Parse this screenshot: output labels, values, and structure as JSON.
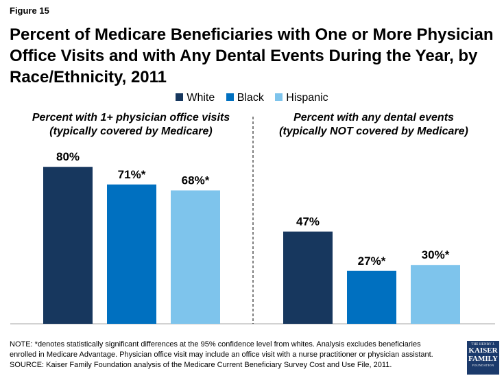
{
  "figure_label": "Figure 15",
  "title": "Percent of Medicare Beneficiaries with One or More Physician Office Visits and with Any Dental Events During the Year, by Race/Ethnicity, 2011",
  "legend": [
    {
      "name": "White",
      "color": "#17375e"
    },
    {
      "name": "Black",
      "color": "#0070c0"
    },
    {
      "name": "Hispanic",
      "color": "#7ec4ec"
    }
  ],
  "chart_data": [
    {
      "type": "bar",
      "title": "Percent with 1+ physician office visits",
      "subtitle": "(typically covered by Medicare)",
      "categories": [
        "White",
        "Black",
        "Hispanic"
      ],
      "values": [
        80,
        71,
        68
      ],
      "labels": [
        "80%",
        "71%*",
        "68%*"
      ],
      "ylim": [
        0,
        100
      ]
    },
    {
      "type": "bar",
      "title": "Percent with any dental events",
      "subtitle": "(typically NOT covered by Medicare)",
      "categories": [
        "White",
        "Black",
        "Hispanic"
      ],
      "values": [
        47,
        27,
        30
      ],
      "labels": [
        "47%",
        "27%*",
        "30%*"
      ],
      "ylim": [
        0,
        100
      ]
    }
  ],
  "notes": {
    "line1": "NOTE: *denotes statistically significant differences at the 95% confidence level from whites. Analysis excludes beneficiaries",
    "line2": "enrolled in Medicare Advantage. Physician office visit may include an office visit with a nurse practitioner or physician assistant.",
    "line3": "SOURCE: Kaiser Family Foundation analysis of the Medicare Current Beneficiary Survey Cost and Use File, 2011."
  },
  "logo": {
    "line1": "THE HENRY J.",
    "line2": "KAISER",
    "line3": "FAMILY",
    "line4": "FOUNDATION"
  }
}
